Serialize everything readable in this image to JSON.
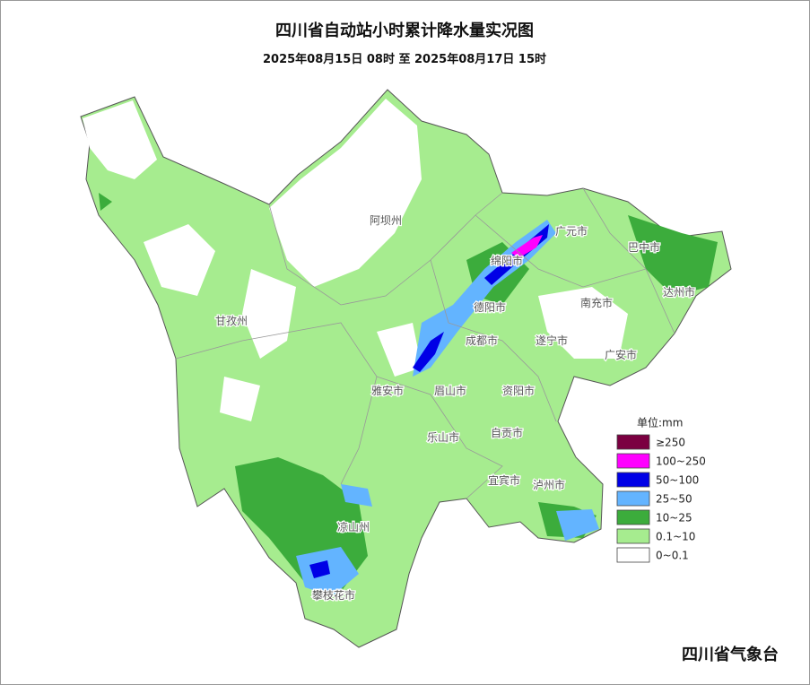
{
  "header": {
    "title": "四川省自动站小时累计降水量实况图",
    "subtitle": "2025年08月15日 08时 至 2025年08月17日 15时"
  },
  "legend": {
    "unit": "单位:mm",
    "items": [
      {
        "label": "≥250",
        "color": "#7b0041"
      },
      {
        "label": "100~250",
        "color": "#ff00ff"
      },
      {
        "label": "50~100",
        "color": "#0000e6"
      },
      {
        "label": "25~50",
        "color": "#63b4ff"
      },
      {
        "label": "10~25",
        "color": "#3cac3c"
      },
      {
        "label": "0.1~10",
        "color": "#a6ec8f"
      },
      {
        "label": "0~0.1",
        "color": "#ffffff"
      }
    ]
  },
  "map": {
    "labels": [
      "阿坝州",
      "广元市",
      "巴中市",
      "绵阳市",
      "达州市",
      "南充市",
      "德阳市",
      "甘孜州",
      "成都市",
      "遂宁市",
      "广安市",
      "雅安市",
      "眉山市",
      "资阳市",
      "自贡市",
      "乐山市",
      "宜宾市",
      "泸州市",
      "凉山州",
      "攀枝花市"
    ]
  },
  "footer": {
    "agency": "四川省气象台"
  }
}
